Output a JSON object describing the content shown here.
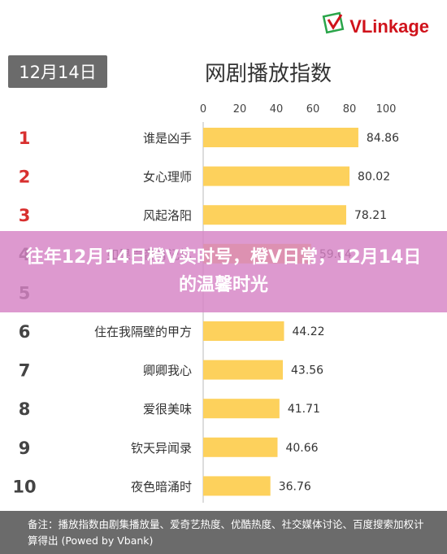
{
  "brand": {
    "name": "VLinkage",
    "color": "#d0121b"
  },
  "date_badge": "12月14日",
  "banner_text": "往年12月14日橙V实时号，橙V日常，12月14日的温馨时光",
  "footnote": "备注：播放指数由剧集播放量、爱奇艺热度、优酷热度、社交媒体讨论、百度搜索加权计算得出 (Powed by Vbank)",
  "colors": {
    "bar": "#fdd15c",
    "rank": "#d8302f",
    "rank_other": "#444444"
  },
  "chart_data": {
    "type": "bar",
    "orientation": "horizontal",
    "title": "网剧播放指数",
    "xlim": [
      0,
      100
    ],
    "xticks": [
      "0",
      "20",
      "40",
      "60",
      "80",
      "100"
    ],
    "ranks": [
      "1",
      "2",
      "3",
      "4",
      "5",
      "6",
      "7",
      "8",
      "9",
      "10"
    ],
    "categories": [
      "谁是凶手",
      "女心理师",
      "风起洛阳",
      "如果声音有记忆",
      "",
      "住在我隔壁的甲方",
      "卿卿我心",
      "爱很美味",
      "钦天异闻录",
      "夜色暗涌时"
    ],
    "values": [
      84.86,
      80.02,
      78.21,
      59.04,
      null,
      44.22,
      43.56,
      41.71,
      40.66,
      36.76
    ],
    "value_labels": [
      "84.86",
      "80.02",
      "78.21",
      "59.04",
      "",
      "44.22",
      "43.56",
      "41.71",
      "40.66",
      "36.76"
    ],
    "grid": false,
    "legend": "none"
  }
}
